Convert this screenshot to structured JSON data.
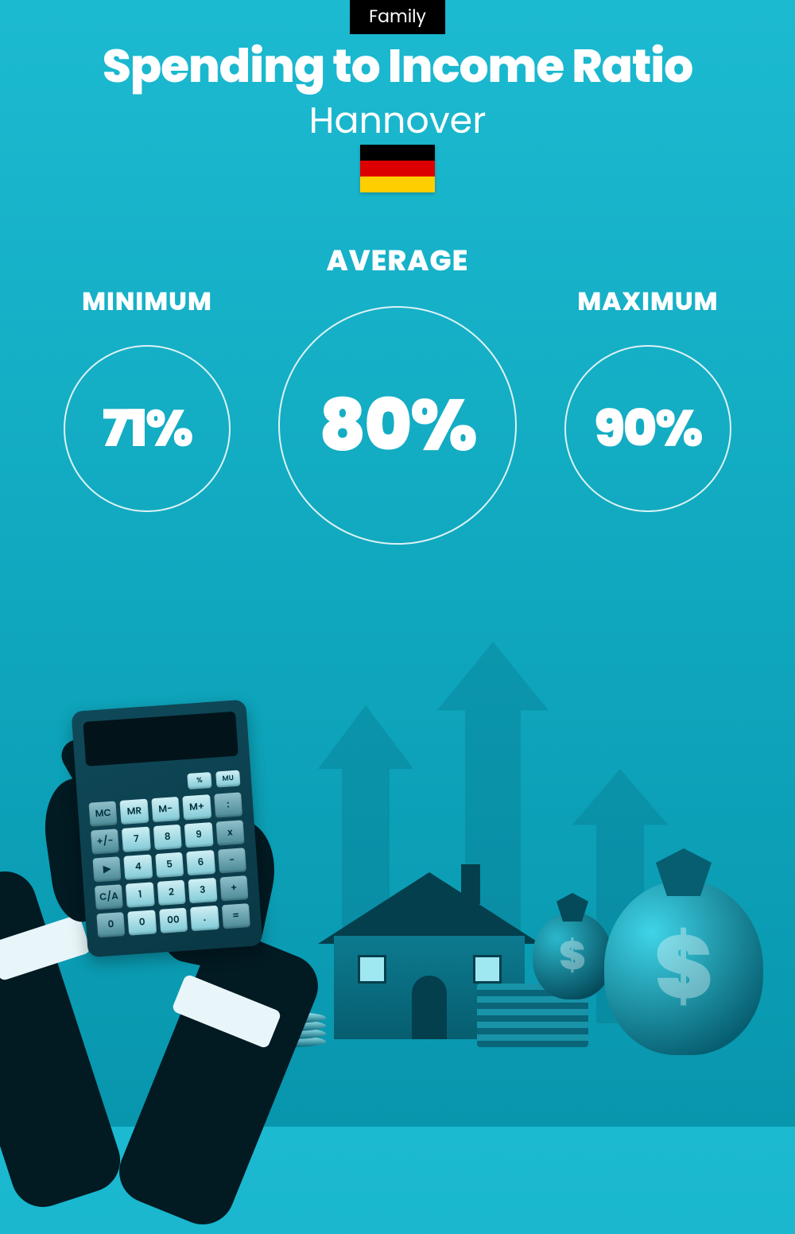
{
  "tag": "Family",
  "title": "Spending to Income Ratio",
  "subtitle": "Hannover",
  "flag": {
    "stripes": [
      "#000000",
      "#dd0000",
      "#ffce00"
    ]
  },
  "metrics": {
    "minimum": {
      "label": "MINIMUM",
      "value": "71%"
    },
    "average": {
      "label": "AVERAGE",
      "value": "80%"
    },
    "maximum": {
      "label": "MAXIMUM",
      "value": "90%"
    }
  },
  "colors": {
    "background_top": "#1cbad1",
    "background_bottom": "#0896ad",
    "text": "#ffffff",
    "circle_border": "rgba(255,255,255,0.85)",
    "tag_bg": "#000000"
  },
  "typography": {
    "title_fontsize": 58,
    "title_weight": 800,
    "subtitle_fontsize": 46,
    "label_fontsize": 32,
    "value_small_fontsize": 64,
    "value_large_fontsize": 90
  },
  "circles": {
    "small_diameter": 210,
    "large_diameter": 300,
    "border_width": 2
  },
  "calculator": {
    "top_keys": [
      "%",
      "MU"
    ],
    "rows": [
      [
        "MC",
        "MR",
        "M-",
        "M+",
        ":"
      ],
      [
        "+/-",
        "7",
        "8",
        "9",
        "x"
      ],
      [
        "▶",
        "4",
        "5",
        "6",
        "-"
      ],
      [
        "C/A",
        "1",
        "2",
        "3",
        "+"
      ],
      [
        "0",
        "0",
        "00",
        ".",
        "="
      ]
    ]
  },
  "dollar_sign": "$"
}
